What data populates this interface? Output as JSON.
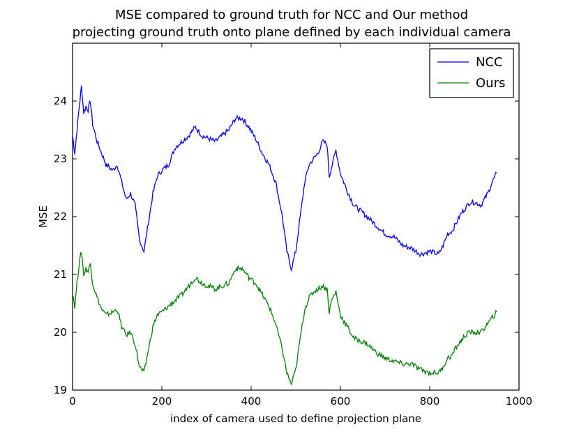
{
  "chart_data": {
    "type": "line",
    "title_lines": [
      "MSE compared to ground truth for NCC and Our method",
      "projecting ground truth onto plane defined by each individual camera"
    ],
    "xlabel": "index of camera used to define projection plane",
    "ylabel": "MSE",
    "xlim": [
      0,
      1000
    ],
    "ylim": [
      19,
      25
    ],
    "xticks": [
      0,
      200,
      400,
      600,
      800,
      1000
    ],
    "xtick_labels": [
      "0",
      "200",
      "400",
      "600",
      "800",
      "1000"
    ],
    "yticks": [
      19,
      20,
      21,
      22,
      23,
      24
    ],
    "ytick_labels": [
      "19",
      "20",
      "21",
      "22",
      "23",
      "24"
    ],
    "grid": false,
    "legend_position": "top-right",
    "series": [
      {
        "name": "NCC",
        "color": "#0000ff",
        "x": [
          0,
          5,
          10,
          15,
          20,
          25,
          30,
          35,
          40,
          45,
          55,
          65,
          75,
          90,
          100,
          110,
          120,
          130,
          140,
          150,
          160,
          170,
          180,
          190,
          200,
          215,
          230,
          245,
          260,
          275,
          290,
          305,
          320,
          335,
          350,
          365,
          380,
          395,
          410,
          425,
          440,
          455,
          470,
          480,
          490,
          500,
          510,
          520,
          530,
          540,
          550,
          560,
          570,
          575,
          580,
          590,
          600,
          615,
          630,
          645,
          660,
          680,
          700,
          720,
          740,
          760,
          780,
          800,
          820,
          830,
          840,
          850,
          860,
          870,
          880,
          890,
          900,
          915,
          930,
          940,
          950
        ],
        "y": [
          23.4,
          23.1,
          23.5,
          23.9,
          24.25,
          23.8,
          23.9,
          23.85,
          24.0,
          23.6,
          23.3,
          23.1,
          22.9,
          22.8,
          22.9,
          22.6,
          22.3,
          22.4,
          22.2,
          21.6,
          21.4,
          21.9,
          22.4,
          22.7,
          22.8,
          22.9,
          23.2,
          23.3,
          23.4,
          23.55,
          23.4,
          23.35,
          23.3,
          23.4,
          23.5,
          23.7,
          23.7,
          23.55,
          23.35,
          23.1,
          22.9,
          22.6,
          22.0,
          21.4,
          21.1,
          21.4,
          22.0,
          22.6,
          22.9,
          23.0,
          23.1,
          23.3,
          23.25,
          22.7,
          22.85,
          23.15,
          22.75,
          22.45,
          22.2,
          22.1,
          22.0,
          21.85,
          21.7,
          21.65,
          21.5,
          21.45,
          21.35,
          21.4,
          21.35,
          21.5,
          21.7,
          21.75,
          21.9,
          22.05,
          22.15,
          22.25,
          22.25,
          22.2,
          22.4,
          22.6,
          22.75
        ]
      },
      {
        "name": "Ours",
        "color": "#008000",
        "x": [
          0,
          5,
          10,
          15,
          20,
          25,
          30,
          35,
          40,
          45,
          55,
          65,
          75,
          90,
          100,
          110,
          120,
          130,
          140,
          150,
          160,
          170,
          180,
          190,
          200,
          215,
          230,
          245,
          260,
          275,
          290,
          305,
          320,
          335,
          350,
          365,
          380,
          395,
          410,
          425,
          440,
          455,
          470,
          480,
          490,
          500,
          510,
          520,
          530,
          540,
          550,
          560,
          570,
          575,
          580,
          590,
          600,
          615,
          630,
          645,
          660,
          680,
          700,
          720,
          740,
          760,
          780,
          800,
          820,
          830,
          840,
          850,
          860,
          870,
          880,
          890,
          900,
          915,
          930,
          940,
          950
        ],
        "y": [
          20.7,
          20.45,
          20.85,
          21.2,
          21.4,
          21.0,
          21.1,
          21.05,
          21.2,
          20.85,
          20.6,
          20.4,
          20.3,
          20.35,
          20.4,
          20.1,
          19.95,
          20.0,
          19.8,
          19.4,
          19.3,
          19.7,
          20.1,
          20.3,
          20.35,
          20.45,
          20.55,
          20.65,
          20.8,
          20.95,
          20.85,
          20.8,
          20.75,
          20.8,
          20.85,
          21.1,
          21.1,
          20.95,
          20.85,
          20.65,
          20.45,
          20.15,
          19.7,
          19.3,
          19.1,
          19.35,
          19.9,
          20.4,
          20.6,
          20.7,
          20.75,
          20.8,
          20.75,
          20.35,
          20.55,
          20.7,
          20.3,
          20.1,
          19.9,
          19.85,
          19.8,
          19.65,
          19.55,
          19.5,
          19.45,
          19.45,
          19.35,
          19.3,
          19.3,
          19.4,
          19.55,
          19.6,
          19.75,
          19.85,
          19.95,
          20.0,
          20.0,
          20.0,
          20.15,
          20.25,
          20.35
        ]
      }
    ]
  }
}
